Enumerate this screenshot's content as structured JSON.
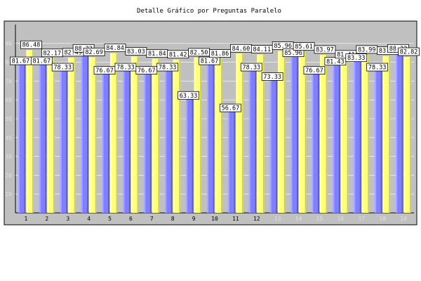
{
  "chart_data": {
    "type": "bar",
    "title": "Detalle Gráfico por Preguntas Paralelo",
    "xlabel": "",
    "ylabel": "",
    "ylim": [
      0,
      100
    ],
    "yticks": [
      10,
      20,
      30,
      40,
      50,
      60,
      70,
      80,
      90
    ],
    "grid": true,
    "legend": "none",
    "categories": [
      "1",
      "2",
      "3",
      "4",
      "5",
      "6",
      "7",
      "8",
      "9",
      "10",
      "11",
      "12",
      "13",
      "14",
      "15",
      "16",
      "17",
      "18",
      "19"
    ],
    "series": [
      {
        "color": "#8080ff",
        "values": [
          81.67,
          81.67,
          78.33,
          88.33,
          76.67,
          78.33,
          76.67,
          78.33,
          63.33,
          81.67,
          56.67,
          78.33,
          73.33,
          85.96,
          76.67,
          81.43,
          83.33,
          78.33,
          88.33
        ]
      },
      {
        "color": "#ffff80",
        "values": [
          86.48,
          82.17,
          82.49,
          82.69,
          84.84,
          83.03,
          81.84,
          81.42,
          82.5,
          81.86,
          84.6,
          84.11,
          85.96,
          85.61,
          83.97,
          81.41,
          83.99,
          83.33,
          82.82
        ]
      }
    ],
    "colors": {
      "plot_background": "#c0c0c0",
      "grid": "#ffffff",
      "tick_label_faded": "#e0e0e0"
    }
  }
}
